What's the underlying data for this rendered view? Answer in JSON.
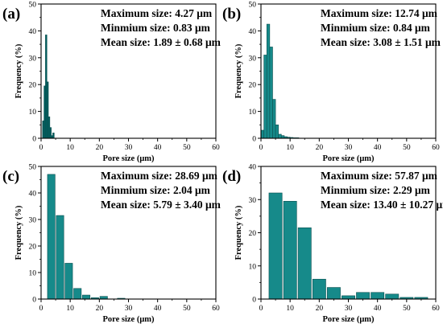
{
  "chart_data": [
    {
      "type": "bar",
      "panel": "(a)",
      "xlabel": "Pore size (μm)",
      "ylabel": "Frequency (%)",
      "xlim": [
        0,
        60
      ],
      "ylim": [
        0,
        50
      ],
      "xticks": [
        0,
        10,
        20,
        30,
        40,
        50,
        60
      ],
      "yticks": [
        0,
        10,
        20,
        30,
        40,
        50
      ],
      "bar_width": 0.5,
      "bar_color": "#006060",
      "annotations": [
        "Maximum size: 4.27 μm",
        "Minmium size: 0.83 μm",
        "Mean size: 1.89 ± 0.68 μm"
      ],
      "x": [
        0.75,
        1.25,
        1.75,
        2.25,
        2.75,
        3.25,
        3.75,
        4.25
      ],
      "values": [
        6.5,
        19.5,
        38.5,
        21.0,
        8.0,
        4.0,
        1.0,
        2.0
      ]
    },
    {
      "type": "bar",
      "panel": "(b)",
      "xlabel": "Pore size (μm)",
      "ylabel": "Frequency (%)",
      "xlim": [
        0,
        60
      ],
      "ylim": [
        0,
        50
      ],
      "xticks": [
        0,
        10,
        20,
        30,
        40,
        50,
        60
      ],
      "yticks": [
        0,
        10,
        20,
        30,
        40,
        50
      ],
      "bar_width": 1.0,
      "bar_color": "#168a8a",
      "annotations": [
        "Maximum size: 12.74 μm",
        "Minmium size: 0.84 μm",
        "Mean size: 3.08 ± 1.51 μm"
      ],
      "x": [
        0.5,
        1.5,
        2.5,
        3.5,
        4.5,
        5.5,
        6.5,
        7.5,
        8.5,
        9.5,
        10.5,
        11.5,
        12.5
      ],
      "values": [
        3.0,
        31.0,
        42.5,
        34.0,
        14.5,
        5.0,
        1.5,
        1.0,
        0.6,
        0.4,
        0.3,
        0.2,
        0.2
      ]
    },
    {
      "type": "bar",
      "panel": "(c)",
      "xlabel": "Pore size (μm)",
      "ylabel": "Frequency (%)",
      "xlim": [
        0,
        60
      ],
      "ylim": [
        0,
        50
      ],
      "xticks": [
        0,
        10,
        20,
        30,
        40,
        50,
        60
      ],
      "yticks": [
        0,
        10,
        20,
        30,
        40,
        50
      ],
      "bar_width": 2.6,
      "bar_color": "#168a8a",
      "annotations": [
        "Maximum size: 28.69 μm",
        "Minmium size: 2.04 μm",
        "Mean size: 5.79 ± 3.40 μm"
      ],
      "x": [
        3.5,
        6.5,
        9.5,
        12.5,
        15.5,
        18.5,
        21.5,
        27.5
      ],
      "values": [
        47.0,
        31.5,
        13.5,
        4.0,
        1.5,
        0.5,
        1.0,
        0.3
      ]
    },
    {
      "type": "bar",
      "panel": "(d)",
      "xlabel": "Pore size (μm)",
      "ylabel": "Frequency (%)",
      "xlim": [
        0,
        60
      ],
      "ylim": [
        0,
        40
      ],
      "xticks": [
        0,
        10,
        20,
        30,
        40,
        50,
        60
      ],
      "yticks": [
        0,
        10,
        20,
        30,
        40
      ],
      "bar_width": 4.5,
      "bar_color": "#168a8a",
      "annotations": [
        "Maximum size: 57.87 μm",
        "Minmium size: 2.29 μm",
        "Mean size: 13.40 ± 10.27 μm"
      ],
      "x": [
        5,
        10,
        15,
        20,
        25,
        30,
        35,
        40,
        45,
        50,
        55
      ],
      "values": [
        32.0,
        29.5,
        21.5,
        6.0,
        3.5,
        1.0,
        2.0,
        2.0,
        1.5,
        0.5,
        0.5
      ]
    }
  ]
}
